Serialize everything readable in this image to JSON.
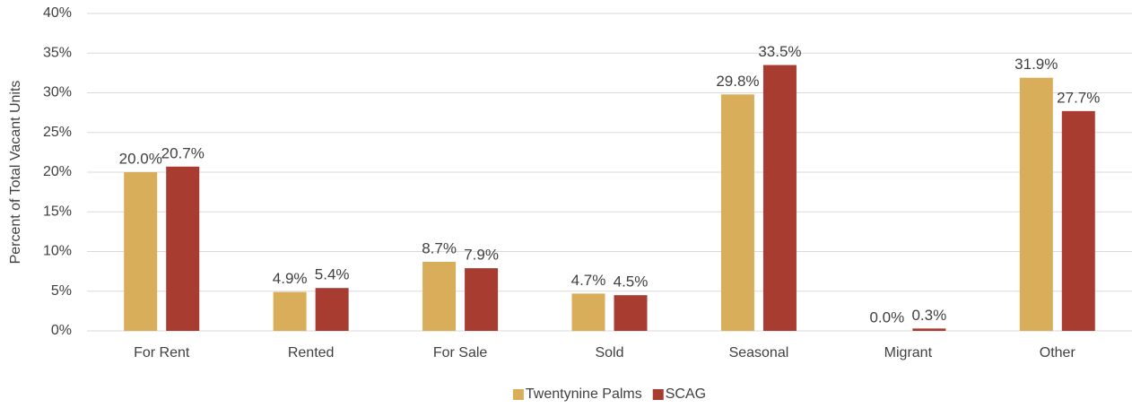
{
  "chart_data": {
    "type": "bar",
    "y_label": "Percent of Total Vacant Units",
    "categories": [
      "For Rent",
      "Rented",
      "For Sale",
      "Sold",
      "Seasonal",
      "Migrant",
      "Other"
    ],
    "series": [
      {
        "name": "Twentynine Palms",
        "color": "#d9ae5a",
        "values": [
          20.0,
          4.9,
          8.7,
          4.7,
          29.8,
          0.0,
          31.9
        ],
        "value_labels": [
          "20.0%",
          "4.9%",
          "8.7%",
          "4.7%",
          "29.8%",
          "0.0%",
          "31.9%"
        ]
      },
      {
        "name": "SCAG",
        "color": "#a93c30",
        "values": [
          20.7,
          5.4,
          7.9,
          4.5,
          33.5,
          0.3,
          27.7
        ],
        "value_labels": [
          "20.7%",
          "5.4%",
          "7.9%",
          "4.5%",
          "33.5%",
          "0.3%",
          "27.7%"
        ]
      }
    ],
    "ylim": [
      0,
      40
    ],
    "yticks": [
      {
        "value": 0,
        "label": "0%"
      },
      {
        "value": 5,
        "label": "5%"
      },
      {
        "value": 10,
        "label": "10%"
      },
      {
        "value": 15,
        "label": "15%"
      },
      {
        "value": 20,
        "label": "20%"
      },
      {
        "value": 25,
        "label": "25%"
      },
      {
        "value": 30,
        "label": "30%"
      },
      {
        "value": 35,
        "label": "35%"
      },
      {
        "value": 40,
        "label": "40%"
      }
    ],
    "grid": true,
    "legend": "bottom"
  }
}
